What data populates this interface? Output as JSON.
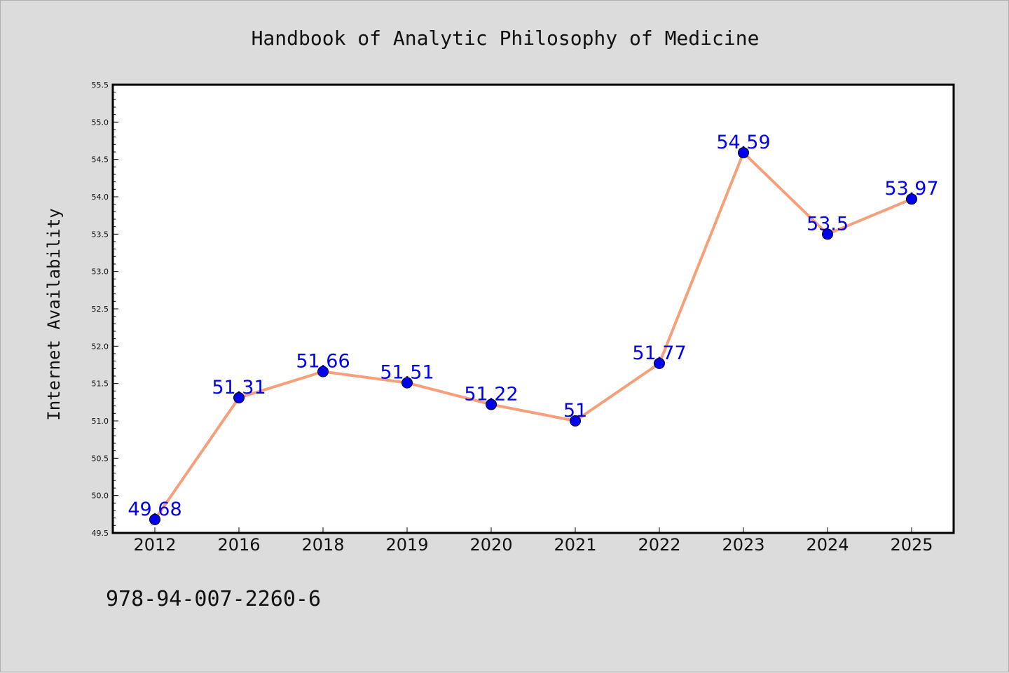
{
  "chart_data": {
    "type": "line",
    "title": "Handbook of Analytic Philosophy of Medicine",
    "xlabel": "",
    "ylabel": "Internet Availability",
    "categories": [
      "2012",
      "2016",
      "2018",
      "2019",
      "2020",
      "2021",
      "2022",
      "2023",
      "2024",
      "2025"
    ],
    "series": [
      {
        "values": [
          49.68,
          51.31,
          51.66,
          51.51,
          51.22,
          51,
          51.77,
          54.59,
          53.5,
          53.97
        ],
        "data_labels": [
          "49.68",
          "51.31",
          "51.66",
          "51.51",
          "51.22",
          "51",
          "51.77",
          "54.59",
          "53.5",
          "53.97"
        ]
      }
    ],
    "ylim": [
      49.5,
      55.5
    ],
    "y_major_ticks": [
      "49.5",
      "50.0",
      "50.5",
      "51.0",
      "51.5",
      "52.0",
      "52.5",
      "53.0",
      "53.5",
      "54.0",
      "54.5",
      "55.0",
      "55.5"
    ],
    "grid": false,
    "legend": "none",
    "line_color": "#f5a07a",
    "marker_color": "#0000ee",
    "label_color": "#0000ee",
    "background_color": "#dcdcdc",
    "plot_background_color": "#ffffff"
  },
  "footer": {
    "isbn": "978-94-007-2260-6"
  }
}
